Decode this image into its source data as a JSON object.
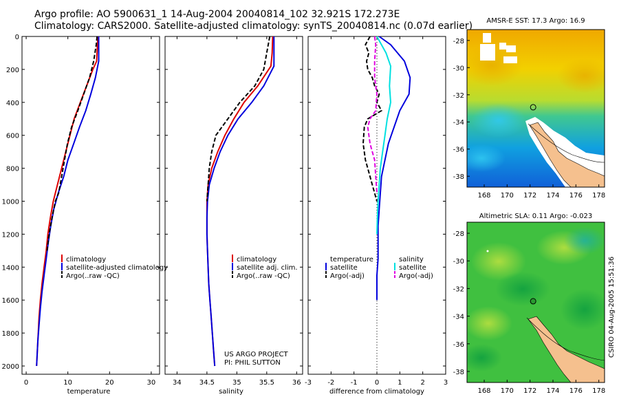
{
  "header": {
    "title_line1": "Argo profile: AO 5900631_1 14-Aug-2004 20040814_102 32.921S 172.273E",
    "title_line2": "Climatology: CARS2000. Satellite-adjusted climatology: synTS_20040814.nc (0.07d earlier)"
  },
  "footer": {
    "stamp": "CSIRO 04-Aug-2005 15:51:36"
  },
  "colors": {
    "red": "#dd0000",
    "blue": "#0000dd",
    "black": "#000000",
    "cyan": "#00e0e0",
    "magenta": "#e000e0",
    "land": "#f5c08e"
  },
  "chart_data": [
    {
      "type": "line",
      "xlabel": "temperature",
      "ylabel": "",
      "xlim": [
        -1,
        32
      ],
      "ylim": [
        2050,
        0
      ],
      "y_reversed": true,
      "xticks": [
        0,
        10,
        20,
        30
      ],
      "yticks": [
        0,
        200,
        400,
        600,
        800,
        1000,
        1200,
        1400,
        1600,
        1800,
        2000
      ],
      "legend": {
        "position": "lower-right",
        "entries": [
          "climatology",
          "satellite-adjusted climatology",
          "Argo(..raw -QC)"
        ]
      },
      "series": [
        {
          "name": "climatology",
          "color": "red",
          "dash": "solid",
          "points": [
            [
              17.2,
              0
            ],
            [
              17.1,
              50
            ],
            [
              16.9,
              150
            ],
            [
              16.0,
              200
            ],
            [
              14.5,
              300
            ],
            [
              13.0,
              400
            ],
            [
              11.5,
              500
            ],
            [
              10.5,
              600
            ],
            [
              9.5,
              700
            ],
            [
              8.5,
              800
            ],
            [
              7.5,
              900
            ],
            [
              6.5,
              1000
            ],
            [
              5.8,
              1100
            ],
            [
              5.2,
              1200
            ],
            [
              4.8,
              1300
            ],
            [
              4.3,
              1400
            ],
            [
              3.8,
              1500
            ],
            [
              3.4,
              1600
            ],
            [
              3.1,
              1700
            ],
            [
              2.9,
              1800
            ],
            [
              2.7,
              1900
            ],
            [
              2.5,
              2000
            ]
          ]
        },
        {
          "name": "satellite-adjusted climatology",
          "color": "blue",
          "dash": "solid",
          "points": [
            [
              17.4,
              0
            ],
            [
              17.4,
              50
            ],
            [
              17.4,
              150
            ],
            [
              16.6,
              250
            ],
            [
              15.5,
              350
            ],
            [
              14.3,
              450
            ],
            [
              12.8,
              550
            ],
            [
              11.4,
              650
            ],
            [
              10.0,
              750
            ],
            [
              9.0,
              850
            ],
            [
              7.7,
              950
            ],
            [
              6.6,
              1050
            ],
            [
              5.9,
              1150
            ],
            [
              5.3,
              1250
            ],
            [
              4.8,
              1350
            ],
            [
              4.3,
              1450
            ],
            [
              3.8,
              1550
            ],
            [
              3.4,
              1650
            ],
            [
              3.1,
              1750
            ],
            [
              2.8,
              1850
            ],
            [
              2.6,
              1950
            ],
            [
              2.5,
              2000
            ]
          ]
        },
        {
          "name": "Argo(..raw -QC)",
          "color": "black",
          "dash": "dashed",
          "points": [
            [
              17.0,
              0
            ],
            [
              16.8,
              50
            ],
            [
              16.2,
              150
            ],
            [
              15.2,
              250
            ],
            [
              13.8,
              350
            ],
            [
              12.4,
              450
            ],
            [
              10.9,
              550
            ],
            [
              9.9,
              650
            ],
            [
              9.2,
              750
            ],
            [
              8.5,
              850
            ],
            [
              7.8,
              950
            ],
            [
              7.0,
              1000
            ],
            [
              6.2,
              1100
            ],
            [
              5.5,
              1200
            ],
            [
              5.0,
              1300
            ]
          ]
        }
      ]
    },
    {
      "type": "line",
      "xlabel": "salinity",
      "ylabel": "",
      "xlim": [
        33.8,
        36.1
      ],
      "ylim": [
        2050,
        0
      ],
      "y_reversed": true,
      "xticks": [
        34,
        34.5,
        35,
        35.5,
        36
      ],
      "legend": {
        "position": "lower-right",
        "entries": [
          "climatology",
          "satellite adj. clim.",
          "Argo(..raw -QC)"
        ]
      },
      "annotation": [
        "US ARGO PROJECT",
        "PI: PHIL SUTTON"
      ],
      "series": [
        {
          "name": "climatology",
          "color": "red",
          "dash": "solid",
          "points": [
            [
              35.6,
              0
            ],
            [
              35.59,
              100
            ],
            [
              35.57,
              180
            ],
            [
              35.35,
              300
            ],
            [
              35.12,
              400
            ],
            [
              34.95,
              500
            ],
            [
              34.8,
              600
            ],
            [
              34.68,
              700
            ],
            [
              34.58,
              800
            ],
            [
              34.52,
              900
            ],
            [
              34.5,
              1000
            ],
            [
              34.5,
              1100
            ],
            [
              34.5,
              1200
            ],
            [
              34.51,
              1300
            ],
            [
              34.52,
              1400
            ],
            [
              34.53,
              1500
            ],
            [
              34.55,
              1600
            ],
            [
              34.57,
              1700
            ],
            [
              34.59,
              1800
            ],
            [
              34.61,
              1900
            ],
            [
              34.63,
              2000
            ]
          ]
        },
        {
          "name": "satellite adj. clim.",
          "color": "blue",
          "dash": "solid",
          "points": [
            [
              35.62,
              0
            ],
            [
              35.62,
              100
            ],
            [
              35.62,
              180
            ],
            [
              35.45,
              300
            ],
            [
              35.25,
              400
            ],
            [
              35.02,
              500
            ],
            [
              34.85,
              600
            ],
            [
              34.72,
              700
            ],
            [
              34.62,
              800
            ],
            [
              34.54,
              900
            ],
            [
              34.51,
              1000
            ],
            [
              34.5,
              1100
            ],
            [
              34.5,
              1200
            ],
            [
              34.51,
              1300
            ],
            [
              34.52,
              1400
            ],
            [
              34.53,
              1500
            ],
            [
              34.55,
              1600
            ],
            [
              34.57,
              1700
            ],
            [
              34.59,
              1800
            ],
            [
              34.61,
              1900
            ],
            [
              34.63,
              2000
            ]
          ]
        },
        {
          "name": "Argo(..raw -QC)",
          "color": "black",
          "dash": "dashed",
          "points": [
            [
              35.55,
              0
            ],
            [
              35.5,
              100
            ],
            [
              35.45,
              200
            ],
            [
              35.3,
              300
            ],
            [
              35.05,
              400
            ],
            [
              34.85,
              500
            ],
            [
              34.65,
              600
            ],
            [
              34.58,
              700
            ],
            [
              34.54,
              800
            ],
            [
              34.52,
              900
            ],
            [
              34.5,
              1000
            ]
          ]
        }
      ]
    },
    {
      "type": "line",
      "xlabel": "difference from climatology",
      "ylabel": "",
      "xlim": [
        -3,
        3
      ],
      "ylim": [
        2050,
        0
      ],
      "y_reversed": true,
      "xticks": [
        -3,
        -2,
        -1,
        0,
        1,
        2,
        3
      ],
      "legend": {
        "position": "lower-left",
        "groups": [
          {
            "header": "temperature",
            "entries": [
              "satellite",
              "Argo(-adj)"
            ]
          },
          {
            "header": "salinity",
            "entries": [
              "satellite",
              "Argo(-adj)"
            ]
          }
        ]
      },
      "series": [
        {
          "name": "satellite",
          "group": "temperature",
          "color": "blue",
          "dash": "solid",
          "points": [
            [
              0.1,
              0
            ],
            [
              0.6,
              50
            ],
            [
              1.2,
              150
            ],
            [
              1.45,
              250
            ],
            [
              1.4,
              350
            ],
            [
              1.0,
              450
            ],
            [
              0.75,
              550
            ],
            [
              0.5,
              650
            ],
            [
              0.35,
              750
            ],
            [
              0.2,
              850
            ],
            [
              0.15,
              950
            ],
            [
              0.1,
              1050
            ],
            [
              0.05,
              1150
            ],
            [
              0.05,
              1250
            ],
            [
              0.05,
              1350
            ],
            [
              0.0,
              1450
            ],
            [
              0.0,
              1550
            ],
            [
              0.0,
              1600
            ]
          ]
        },
        {
          "name": "Argo(-adj)",
          "group": "temperature",
          "color": "black",
          "dash": "dashed",
          "points": [
            [
              -0.3,
              0
            ],
            [
              -0.5,
              50
            ],
            [
              -0.35,
              100
            ],
            [
              -0.45,
              150
            ],
            [
              -0.4,
              200
            ],
            [
              -0.2,
              250
            ],
            [
              -0.1,
              300
            ],
            [
              0.1,
              350
            ],
            [
              0.0,
              400
            ],
            [
              0.2,
              450
            ],
            [
              -0.4,
              500
            ],
            [
              -0.55,
              550
            ],
            [
              -0.6,
              650
            ],
            [
              -0.5,
              750
            ],
            [
              -0.4,
              800
            ],
            [
              -0.2,
              900
            ],
            [
              0.0,
              1000
            ]
          ]
        },
        {
          "name": "satellite",
          "group": "salinity",
          "color": "cyan",
          "dash": "solid",
          "points": [
            [
              0.0,
              0
            ],
            [
              0.4,
              100
            ],
            [
              0.6,
              180
            ],
            [
              0.55,
              300
            ],
            [
              0.6,
              400
            ],
            [
              0.45,
              500
            ],
            [
              0.35,
              600
            ],
            [
              0.25,
              700
            ],
            [
              0.15,
              800
            ],
            [
              0.1,
              900
            ],
            [
              0.05,
              1000
            ],
            [
              0.02,
              1100
            ],
            [
              0.0,
              1200
            ]
          ]
        },
        {
          "name": "Argo(-adj)",
          "group": "salinity",
          "color": "magenta",
          "dash": "dashed",
          "points": [
            [
              -0.1,
              0
            ],
            [
              -0.05,
              50
            ],
            [
              -0.1,
              150
            ],
            [
              -0.1,
              250
            ],
            [
              0.0,
              350
            ],
            [
              -0.05,
              450
            ],
            [
              -0.3,
              500
            ],
            [
              -0.4,
              550
            ],
            [
              -0.3,
              650
            ],
            [
              -0.1,
              750
            ],
            [
              -0.05,
              850
            ],
            [
              0.0,
              950
            ]
          ]
        }
      ]
    },
    {
      "type": "heatmap",
      "title": "AMSR-E SST: 17.3 Argo: 16.9",
      "xlim": [
        166.5,
        178.5
      ],
      "ylim": [
        -38.8,
        -27.2
      ],
      "xticks": [
        168,
        170,
        172,
        174,
        176,
        178
      ],
      "yticks": [
        -28,
        -30,
        -32,
        -34,
        -36,
        -38
      ],
      "marker": {
        "lon": 172.27,
        "lat": -32.92
      }
    },
    {
      "type": "heatmap",
      "title": "Altimetric SLA: 0.11 Argo: -0.023",
      "xlim": [
        166.5,
        178.5
      ],
      "ylim": [
        -38.8,
        -27.2
      ],
      "xticks": [
        168,
        170,
        172,
        174,
        176,
        178
      ],
      "yticks": [
        -28,
        -30,
        -32,
        -34,
        -36,
        -38
      ],
      "marker": {
        "lon": 172.27,
        "lat": -32.92
      }
    }
  ]
}
